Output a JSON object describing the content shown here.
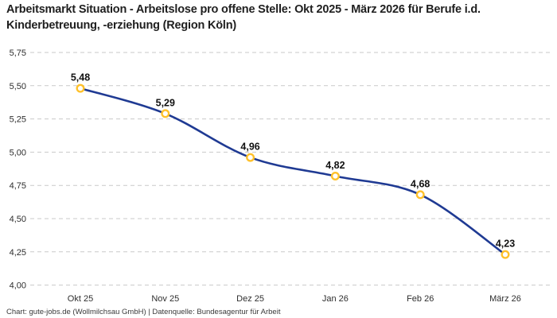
{
  "page": {
    "title": "Arbeitsmarkt Situation - Arbeitslose pro offene Stelle: Okt 2025 - März 2026 für Berufe i.d. Kinderbetreuung, -erziehung (Region Köln)",
    "footer": "Chart: gute-jobs.de (Wollmilchsau GmbH) | Datenquelle: Bundesagentur für Arbeit"
  },
  "chart_data": {
    "type": "line",
    "title": "Arbeitsmarkt Situation - Arbeitslose pro offene Stelle: Okt 2025 - März 2026 für Berufe i.d. Kinderbetreuung, -erziehung (Region Köln)",
    "categories": [
      "Okt 25",
      "Nov 25",
      "Dez 25",
      "Jan 26",
      "Feb 26",
      "März 26"
    ],
    "values": [
      5.48,
      5.29,
      4.96,
      4.82,
      4.68,
      4.23
    ],
    "value_labels": [
      "5,48",
      "5,29",
      "4,96",
      "4,82",
      "4,68",
      "4,23"
    ],
    "ylim": [
      4.0,
      5.75
    ],
    "ytick_step": 0.25,
    "ytick_labels": [
      "4,00",
      "4,25",
      "4,50",
      "4,75",
      "5,00",
      "5,25",
      "5,50",
      "5,75"
    ],
    "xlabel": "",
    "ylabel": "",
    "legend": "none",
    "grid": "horizontal-dashed",
    "style": {
      "line_color": "#1f3a93",
      "marker_ring_color": "#ffc12b",
      "marker_fill_color": "#ffffff",
      "grid_color": "#c9c9c9",
      "axis_text_color": "#2e2e2e",
      "value_label_color": "#121212",
      "background_color": "#ffffff"
    }
  }
}
